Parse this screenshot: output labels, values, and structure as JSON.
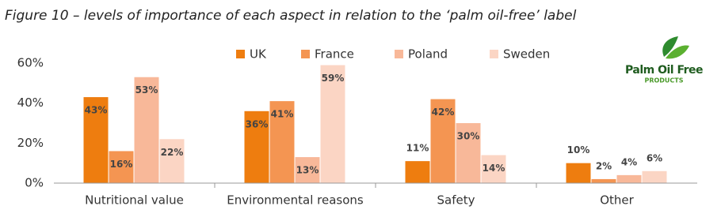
{
  "chart_data": {
    "type": "bar",
    "title": "Figure 10 – levels of importance of each aspect in relation to the ‘palm oil-free’ label",
    "logo": {
      "title": "Palm Oil Free",
      "subtitle": "PRODUCTS"
    },
    "categories": [
      "Nutritional value",
      "Environmental reasons",
      "Safety",
      "Other"
    ],
    "series": [
      {
        "name": "UK",
        "color": "#ee7d0f",
        "values": [
          43,
          36,
          11,
          10
        ],
        "value_labels": [
          "43%",
          "36%",
          "11%",
          "10%"
        ]
      },
      {
        "name": "France",
        "color": "#f49552",
        "values": [
          16,
          41,
          42,
          2
        ],
        "value_labels": [
          "16%",
          "41%",
          "42%",
          "2%"
        ]
      },
      {
        "name": "Poland",
        "color": "#f8b899",
        "values": [
          53,
          13,
          30,
          4
        ],
        "value_labels": [
          "53%",
          "13%",
          "30%",
          "4%"
        ]
      },
      {
        "name": "Sweden",
        "color": "#fbd5c4",
        "values": [
          22,
          59,
          14,
          6
        ],
        "value_labels": [
          "22%",
          "59%",
          "14%",
          "6%"
        ]
      }
    ],
    "ylim": [
      0,
      60
    ],
    "yticks": [
      {
        "value": 0,
        "label": "0%"
      },
      {
        "value": 20,
        "label": "20%"
      },
      {
        "value": 40,
        "label": "40%"
      },
      {
        "value": 60,
        "label": "60%"
      }
    ],
    "grid": false,
    "legend": "top"
  }
}
